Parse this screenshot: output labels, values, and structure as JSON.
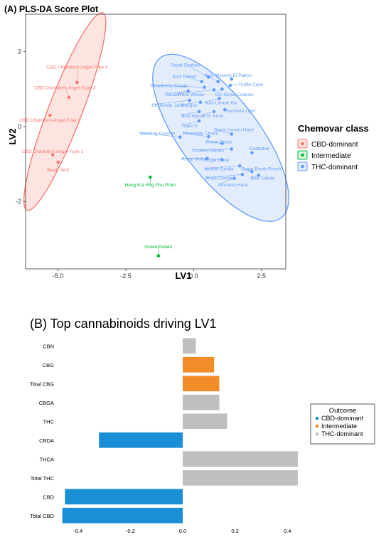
{
  "chart_data": [
    {
      "type": "scatter",
      "title": "(A) PLS-DA Score Plot",
      "xlabel": "LV1",
      "ylabel": "LV2",
      "xlim": [
        -6.2,
        3.4
      ],
      "ylim": [
        -3.8,
        3.0
      ],
      "xticks": [
        -5.0,
        -2.5,
        0.0,
        2.5
      ],
      "xtick_labels": [
        "-5.0",
        "-2.5",
        "0.0",
        "2.5"
      ],
      "yticks": [
        -2,
        0,
        2
      ],
      "ytick_labels": [
        "-2",
        "0",
        "2"
      ],
      "grid": false,
      "legend": {
        "title": "Chemovar class",
        "position": "right",
        "items": [
          {
            "label": "CBD-dominant",
            "color": "#f8766d",
            "fill": "#fde4e1"
          },
          {
            "label": "Intermediate",
            "color": "#00ba38",
            "fill": "#d9f5e1"
          },
          {
            "label": "THC-dominant",
            "color": "#619cff",
            "fill": "#e3ecfb"
          }
        ]
      },
      "ellipses": [
        {
          "class": "CBD-dominant",
          "cx": -4.75,
          "cy": 0.4,
          "rx": 3.9,
          "ry": 0.62,
          "angle_deg": 69
        },
        {
          "class": "THC-dominant",
          "cx": 1.0,
          "cy": -0.3,
          "rx": 3.7,
          "ry": 1.45,
          "angle_deg": -53
        }
      ],
      "series": [
        {
          "name": "CBD-dominant",
          "color": "#f8766d",
          "points": [
            {
              "label": "CBD Charlotte's Angel-Type 4",
              "x": -4.3,
              "y": 1.18,
              "lx": -4.3,
              "ly": 1.55,
              "anchor": "middle"
            },
            {
              "label": "CBD Charlotte's Angel-Type 3",
              "x": -4.6,
              "y": 0.78,
              "lx": -4.75,
              "ly": 1.0,
              "anchor": "middle"
            },
            {
              "label": "CBD Charlotte's Angel-Type 2",
              "x": -5.3,
              "y": 0.3,
              "lx": -5.3,
              "ly": 0.13,
              "anchor": "middle"
            },
            {
              "label": "CBD Charlotte's Angel-Type 1",
              "x": -5.2,
              "y": -0.75,
              "lx": -5.2,
              "ly": -0.7,
              "anchor": "middle"
            },
            {
              "label": "Black Jack",
              "x": -5.0,
              "y": -0.95,
              "lx": -5.0,
              "ly": -1.2,
              "anchor": "middle"
            }
          ]
        },
        {
          "name": "Intermediate",
          "color": "#00ba38",
          "points": [
            {
              "label": "Hang Kra Rog Phu Phan",
              "x": -1.6,
              "y": -1.35,
              "lx": -1.6,
              "ly": -1.6,
              "anchor": "middle"
            },
            {
              "label": "Green Gelato",
              "x": -1.3,
              "y": -3.45,
              "lx": -1.3,
              "ly": -3.25,
              "anchor": "middle"
            }
          ]
        },
        {
          "name": "THC-dominant",
          "color": "#619cff",
          "points": [
            {
              "label": "Royal Cookies",
              "x": 0.55,
              "y": 1.32,
              "lx": -0.3,
              "ly": 1.6,
              "anchor": "middle"
            },
            {
              "label": "Sour Diesel",
              "x": 0.3,
              "y": 1.2,
              "lx": -0.35,
              "ly": 1.3,
              "anchor": "middle"
            },
            {
              "label": "O.G. Mystery",
              "x": 0.9,
              "y": 1.2,
              "lx": 0.4,
              "ly": 1.33,
              "anchor": "start"
            },
            {
              "label": "El Patron",
              "x": 1.4,
              "y": 1.27,
              "lx": 1.45,
              "ly": 1.33,
              "anchor": "start"
            },
            {
              "label": "Truffle Cake",
              "x": 1.35,
              "y": 1.1,
              "lx": 1.65,
              "ly": 1.08,
              "anchor": "start"
            },
            {
              "label": "Strawberry Cough",
              "x": 0.4,
              "y": 1.05,
              "lx": -1.6,
              "ly": 1.05,
              "anchor": "start"
            },
            {
              "label": "Gelato",
              "x": -0.2,
              "y": 0.95,
              "lx": -1.05,
              "ly": 0.82,
              "anchor": "start"
            },
            {
              "label": "White Widow",
              "x": 0.75,
              "y": 0.98,
              "lx": -0.6,
              "ly": 0.82,
              "anchor": "start"
            },
            {
              "label": "Girl Scout Cookies",
              "x": 1.05,
              "y": 1.0,
              "lx": 0.8,
              "ly": 0.82,
              "anchor": "start"
            },
            {
              "label": "Auto Lemon Kix",
              "x": 0.95,
              "y": 0.75,
              "lx": 0.4,
              "ly": 0.6,
              "anchor": "start"
            },
            {
              "label": "Cinderella Jack",
              "x": -0.15,
              "y": 0.7,
              "lx": -1.55,
              "ly": 0.53,
              "anchor": "start"
            },
            {
              "label": "Shogun",
              "x": 0.25,
              "y": 0.65,
              "lx": -0.45,
              "ly": 0.53,
              "anchor": "start"
            },
            {
              "label": "O.G. Kush",
              "x": 0.75,
              "y": 0.4,
              "lx": 0.3,
              "ly": 0.25,
              "anchor": "start"
            },
            {
              "label": "Blue Mystic",
              "x": 0.2,
              "y": 0.4,
              "lx": -0.45,
              "ly": 0.25,
              "anchor": "start"
            },
            {
              "label": "Northern Light",
              "x": 1.15,
              "y": 0.45,
              "lx": 1.2,
              "ly": 0.38,
              "anchor": "start"
            },
            {
              "label": "Triple G",
              "x": 0.2,
              "y": 0.15,
              "lx": -0.45,
              "ly": -0.02,
              "anchor": "start"
            },
            {
              "label": "Super Lemon Haze",
              "x": 1.4,
              "y": -0.2,
              "lx": 0.75,
              "ly": -0.12,
              "anchor": "start"
            },
            {
              "label": "Wedding Crasher",
              "x": -0.5,
              "y": -0.28,
              "lx": -2.0,
              "ly": -0.22,
              "anchor": "start"
            },
            {
              "label": "Pineapple Chunk",
              "x": 0.55,
              "y": -0.27,
              "lx": -0.4,
              "ly": -0.22,
              "anchor": "start"
            },
            {
              "label": "Green Crack",
              "x": 1.05,
              "y": -0.45,
              "lx": 0.45,
              "ly": -0.45,
              "anchor": "start"
            },
            {
              "label": "Godfather",
              "x": 2.15,
              "y": -0.7,
              "lx": 2.05,
              "ly": -0.63,
              "anchor": "start"
            },
            {
              "label": "Cookies Gelato",
              "x": 1.4,
              "y": -0.6,
              "lx": -0.05,
              "ly": -0.68,
              "anchor": "start"
            },
            {
              "label": "Royal Moby",
              "x": 0.5,
              "y": -0.85,
              "lx": -0.45,
              "ly": -0.9,
              "anchor": "start"
            },
            {
              "label": "Sugar Cane",
              "x": 1.05,
              "y": -0.88,
              "lx": 0.4,
              "ly": -0.93,
              "anchor": "start"
            },
            {
              "label": "Mother Gorilla",
              "x": 1.7,
              "y": -1.05,
              "lx": 0.4,
              "ly": -1.17,
              "anchor": "start"
            },
            {
              "label": "Sugar Bomb Punch",
              "x": 2.15,
              "y": -1.2,
              "lx": 1.75,
              "ly": -1.17,
              "anchor": "start"
            },
            {
              "label": "Royal Gorilla",
              "x": 1.8,
              "y": -1.28,
              "lx": 0.45,
              "ly": -1.42,
              "anchor": "start"
            },
            {
              "label": "Blue Gelato",
              "x": 2.4,
              "y": -1.3,
              "lx": 2.1,
              "ly": -1.42,
              "anchor": "start"
            },
            {
              "label": "Amnesia Haze",
              "x": 1.5,
              "y": -1.38,
              "lx": 0.9,
              "ly": -1.6,
              "anchor": "start"
            }
          ]
        }
      ]
    },
    {
      "type": "bar",
      "orientation": "horizontal",
      "title": "(B) Top cannabinoids driving LV1",
      "xlim": [
        -0.47,
        0.47
      ],
      "xticks": [
        -0.4,
        -0.2,
        0.0,
        0.2,
        0.4
      ],
      "xtick_labels": [
        "-0.4",
        "-0.2",
        "0.0",
        "0.2",
        "0.4"
      ],
      "grid": false,
      "legend": {
        "title": "Outcome",
        "position": "right",
        "items": [
          {
            "label": "CBD-dominant",
            "color": "#1a8fd6"
          },
          {
            "label": "Intermediate",
            "color": "#f28c28"
          },
          {
            "label": "THC-dominant",
            "color": "#bfbfbf"
          }
        ]
      },
      "categories": [
        "CBN",
        "CBG",
        "Total CBG",
        "CBGA",
        "THC",
        "CBDA",
        "THCA",
        "Total THC",
        "CBD",
        "Total CBD"
      ],
      "values": [
        0.05,
        0.12,
        0.14,
        0.14,
        0.17,
        -0.32,
        0.44,
        0.44,
        -0.45,
        -0.46
      ],
      "outcomes": [
        "THC-dominant",
        "Intermediate",
        "Intermediate",
        "THC-dominant",
        "THC-dominant",
        "CBD-dominant",
        "THC-dominant",
        "THC-dominant",
        "CBD-dominant",
        "CBD-dominant"
      ]
    }
  ]
}
